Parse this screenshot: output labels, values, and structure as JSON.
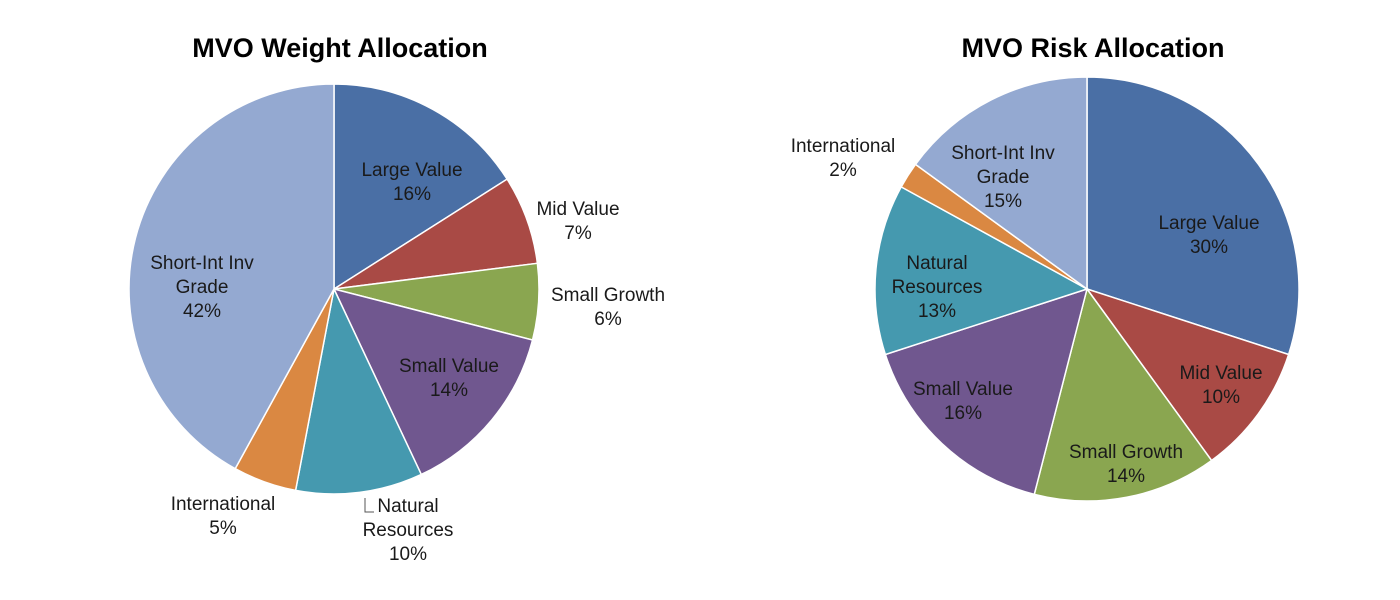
{
  "chart_data": [
    {
      "type": "pie",
      "title": "MVO Weight Allocation",
      "start_angle_deg": 0,
      "direction": "clockwise",
      "slices": [
        {
          "name": "Large Value",
          "pct_label": "16%",
          "value": 16,
          "color": "#4A6FA5"
        },
        {
          "name": "Mid Value",
          "pct_label": "7%",
          "value": 7,
          "color": "#A94A45"
        },
        {
          "name": "Small Growth",
          "pct_label": "6%",
          "value": 6,
          "color": "#8AA650"
        },
        {
          "name": "Small Value",
          "pct_label": "14%",
          "value": 14,
          "color": "#70578F"
        },
        {
          "name": "Natural Resources",
          "pct_label": "10%",
          "value": 10,
          "color": "#4599AF"
        },
        {
          "name": "International",
          "pct_label": "5%",
          "value": 5,
          "color": "#DA8842"
        },
        {
          "name": "Short-Int Inv Grade",
          "pct_label": "42%",
          "value": 42,
          "color": "#94A9D1"
        }
      ]
    },
    {
      "type": "pie",
      "title": "MVO Risk Allocation",
      "start_angle_deg": 0,
      "direction": "clockwise",
      "slices": [
        {
          "name": "Large Value",
          "pct_label": "30%",
          "value": 30,
          "color": "#4A6FA5"
        },
        {
          "name": "Mid Value",
          "pct_label": "10%",
          "value": 10,
          "color": "#A94A45"
        },
        {
          "name": "Small Growth",
          "pct_label": "14%",
          "value": 14,
          "color": "#8AA650"
        },
        {
          "name": "Small Value",
          "pct_label": "16%",
          "value": 16,
          "color": "#70578F"
        },
        {
          "name": "Natural Resources",
          "pct_label": "13%",
          "value": 13,
          "color": "#4599AF"
        },
        {
          "name": "International",
          "pct_label": "2%",
          "value": 2,
          "color": "#DA8842"
        },
        {
          "name": "Short-Int Inv Grade",
          "pct_label": "15%",
          "value": 15,
          "color": "#94A9D1"
        }
      ]
    }
  ]
}
